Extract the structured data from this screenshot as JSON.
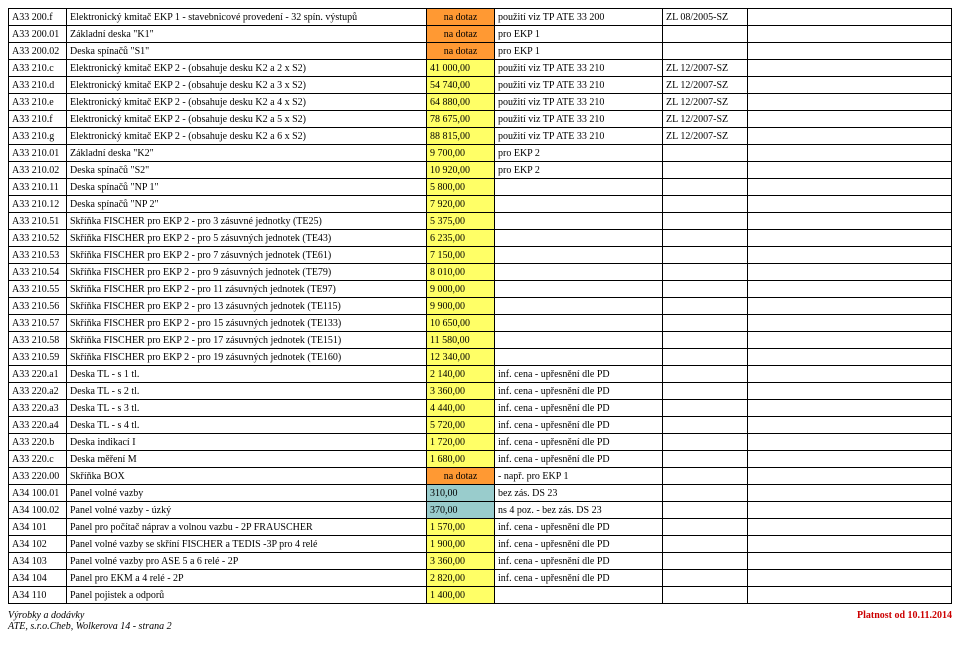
{
  "colors": {
    "orange": "#ff9933",
    "yellow": "#ffff66",
    "teal": "#99cccc",
    "red": "#cc0000",
    "border": "#000000",
    "bg": "#ffffff"
  },
  "rows": [
    {
      "code": "A33 200.f",
      "desc": "Elektronický kmitač EKP 1 - stavebnicové provedení - 32 spín. výstupů",
      "priceClass": "orange",
      "price": "na dotaz",
      "note": "použití viz TP ATE 33 200",
      "zl": "ZL 08/2005-SZ"
    },
    {
      "code": "A33 200.01",
      "desc": "Základní deska \"K1\"",
      "priceClass": "orange",
      "price": "na dotaz",
      "note": "pro EKP 1",
      "zl": ""
    },
    {
      "code": "A33 200.02",
      "desc": "Deska spínačů \"S1\"",
      "priceClass": "orange",
      "price": "na dotaz",
      "note": "pro EKP 1",
      "zl": ""
    },
    {
      "code": "A33 210.c",
      "desc": "Elektronický kmitač EKP 2 - (obsahuje desku K2 a 2 x S2)",
      "priceClass": "yellow",
      "price": "41 000,00",
      "note": "použití viz TP ATE 33 210",
      "zl": "ZL 12/2007-SZ"
    },
    {
      "code": "A33 210.d",
      "desc": "Elektronický kmitač EKP 2 - (obsahuje desku K2 a 3 x S2)",
      "priceClass": "yellow",
      "price": "54 740,00",
      "note": "použití viz TP ATE 33 210",
      "zl": "ZL 12/2007-SZ"
    },
    {
      "code": "A33 210.e",
      "desc": "Elektronický kmitač EKP 2 - (obsahuje desku K2 a 4 x S2)",
      "priceClass": "yellow",
      "price": "64 880,00",
      "note": "použití viz TP ATE 33 210",
      "zl": "ZL 12/2007-SZ"
    },
    {
      "code": "A33 210.f",
      "desc": "Elektronický kmitač EKP 2 - (obsahuje desku K2 a 5 x S2)",
      "priceClass": "yellow",
      "price": "78 675,00",
      "note": "použití viz TP ATE 33 210",
      "zl": "ZL 12/2007-SZ"
    },
    {
      "code": "A33 210.g",
      "desc": "Elektronický kmitač EKP 2 - (obsahuje desku K2 a 6 x S2)",
      "priceClass": "yellow",
      "price": "88 815,00",
      "note": "použití viz TP ATE 33 210",
      "zl": "ZL 12/2007-SZ"
    },
    {
      "code": "A33 210.01",
      "desc": "Základní deska \"K2\"",
      "priceClass": "yellow",
      "price": "9 700,00",
      "note": "pro EKP 2",
      "zl": ""
    },
    {
      "code": "A33 210.02",
      "desc": "Deska spínačů \"S2\"",
      "priceClass": "yellow",
      "price": "10 920,00",
      "note": "pro EKP 2",
      "zl": ""
    },
    {
      "code": "A33 210.11",
      "desc": "Deska spínačů \"NP 1\"",
      "priceClass": "yellow",
      "price": "5 800,00",
      "note": "",
      "zl": ""
    },
    {
      "code": "A33 210.12",
      "desc": "Deska spínačů \"NP 2\"",
      "priceClass": "yellow",
      "price": "7 920,00",
      "note": "",
      "zl": ""
    },
    {
      "code": "A33 210.51",
      "desc": "Skříňka FISCHER pro EKP 2 - pro 3 zásuvné jednotky (TE25)",
      "priceClass": "yellow",
      "price": "5 375,00",
      "note": "",
      "zl": ""
    },
    {
      "code": "A33 210.52",
      "desc": "Skříňka FISCHER pro EKP 2 - pro 5 zásuvných jednotek (TE43)",
      "priceClass": "yellow",
      "price": "6 235,00",
      "note": "",
      "zl": ""
    },
    {
      "code": "A33 210.53",
      "desc": "Skříňka FISCHER pro EKP 2 - pro 7 zásuvných jednotek (TE61)",
      "priceClass": "yellow",
      "price": "7 150,00",
      "note": "",
      "zl": ""
    },
    {
      "code": "A33 210.54",
      "desc": "Skříňka FISCHER pro EKP 2 - pro 9 zásuvných jednotek (TE79)",
      "priceClass": "yellow",
      "price": "8 010,00",
      "note": "",
      "zl": ""
    },
    {
      "code": "A33 210.55",
      "desc": "Skříňka FISCHER pro EKP 2 - pro 11 zásuvných jednotek (TE97)",
      "priceClass": "yellow",
      "price": "9 000,00",
      "note": "",
      "zl": ""
    },
    {
      "code": "A33 210.56",
      "desc": "Skříňka FISCHER pro EKP 2 - pro 13 zásuvných jednotek (TE115)",
      "priceClass": "yellow",
      "price": "9 900,00",
      "note": "",
      "zl": ""
    },
    {
      "code": "A33 210.57",
      "desc": "Skříňka FISCHER pro EKP 2 - pro 15 zásuvných jednotek (TE133)",
      "priceClass": "yellow",
      "price": "10 650,00",
      "note": "",
      "zl": ""
    },
    {
      "code": "A33 210.58",
      "desc": "Skříňka FISCHER pro EKP 2 - pro 17 zásuvných jednotek (TE151)",
      "priceClass": "yellow",
      "price": "11 580,00",
      "note": "",
      "zl": ""
    },
    {
      "code": "A33 210.59",
      "desc": "Skříňka FISCHER pro EKP 2 - pro 19 zásuvných jednotek (TE160)",
      "priceClass": "yellow",
      "price": "12 340,00",
      "note": "",
      "zl": ""
    },
    {
      "code": "A33 220.a1",
      "desc": "Deska TL - s 1 tl.",
      "priceClass": "yellow",
      "price": "2 140,00",
      "note": "inf. cena - upřesnění dle PD",
      "zl": ""
    },
    {
      "code": "A33 220.a2",
      "desc": "Deska TL - s 2 tl.",
      "priceClass": "yellow",
      "price": "3 360,00",
      "note": "inf. cena - upřesnění dle PD",
      "zl": ""
    },
    {
      "code": "A33 220.a3",
      "desc": "Deska TL - s 3 tl.",
      "priceClass": "yellow",
      "price": "4 440,00",
      "note": "inf. cena - upřesnění dle PD",
      "zl": ""
    },
    {
      "code": "A33 220.a4",
      "desc": "Deska TL - s 4 tl.",
      "priceClass": "yellow",
      "price": "5 720,00",
      "note": "inf. cena - upřesnění dle PD",
      "zl": ""
    },
    {
      "code": "A33 220.b",
      "desc": "Deska indikací I",
      "priceClass": "yellow",
      "price": "1 720,00",
      "note": "inf. cena - upřesnění dle PD",
      "zl": ""
    },
    {
      "code": "A33 220.c",
      "desc": "Deska měření M",
      "priceClass": "yellow",
      "price": "1 680,00",
      "note": "inf. cena - upřesnění dle PD",
      "zl": ""
    },
    {
      "code": "A33 220.00",
      "desc": "Skříňka BOX",
      "priceClass": "orange",
      "price": "na dotaz",
      "note": " - např. pro EKP 1",
      "zl": ""
    },
    {
      "code": "A34 100.01",
      "desc": "Panel volné vazby",
      "priceClass": "teal",
      "price": "310,00",
      "note": "bez zás. DS 23",
      "zl": ""
    },
    {
      "code": "A34 100.02",
      "desc": "Panel volné vazby - úzký",
      "priceClass": "teal",
      "price": "370,00",
      "note": "ns 4 poz. - bez zás. DS 23",
      "zl": ""
    },
    {
      "code": "A34 101",
      "desc": "Panel pro počítač náprav a volnou vazbu - 2P FRAUSCHER",
      "priceClass": "yellow",
      "price": "1 570,00",
      "note": "inf. cena - upřesnění dle PD",
      "zl": ""
    },
    {
      "code": "A34 102",
      "desc": "Panel volné vazby se skříní FISCHER a TEDIS -3P pro 4 relé",
      "priceClass": "yellow",
      "price": "1 900,00",
      "note": "inf. cena - upřesnění dle PD",
      "zl": ""
    },
    {
      "code": "A34 103",
      "desc": "Panel volné vazby pro ASE 5 a 6 relé - 2P",
      "priceClass": "yellow",
      "price": "3 360,00",
      "note": "inf. cena - upřesnění dle PD",
      "zl": ""
    },
    {
      "code": "A34 104",
      "desc": "Panel pro EKM a 4 relé - 2P",
      "priceClass": "yellow",
      "price": "2 820,00",
      "note": "inf. cena - upřesnění dle PD",
      "zl": ""
    },
    {
      "code": "A34 110",
      "desc": "Panel pojistek a odporů",
      "priceClass": "yellow",
      "price": "1 400,00",
      "note": "",
      "zl": ""
    }
  ],
  "footer": {
    "left1": "Výrobky a dodávky",
    "left2": "ATE, s.r.o.Cheb, Wolkerova 14  - strana 2",
    "right": "Platnost od 10.11.2014"
  }
}
